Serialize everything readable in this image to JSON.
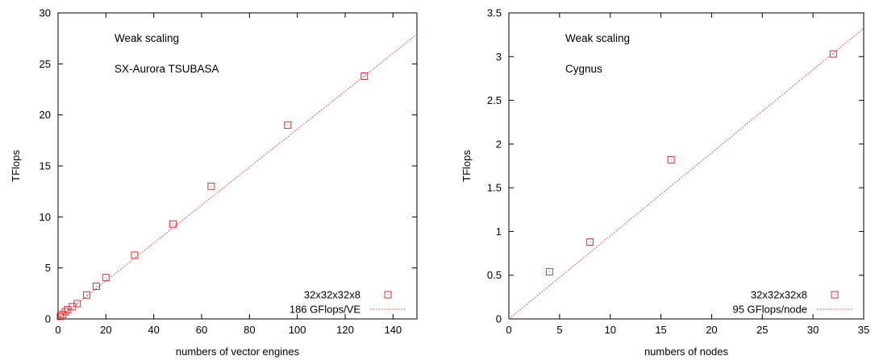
{
  "chart_data": [
    {
      "type": "scatter",
      "title": "",
      "xlabel": "numbers of vector engines",
      "ylabel": "TFlops",
      "xlim": [
        0,
        150
      ],
      "ylim": [
        0,
        30
      ],
      "xticks": [
        0,
        20,
        40,
        60,
        80,
        100,
        120,
        140
      ],
      "yticks": [
        0,
        5,
        10,
        15,
        20,
        25,
        30
      ],
      "grid": false,
      "legend_position": "bottom-right",
      "annotations": [
        "Weak scaling",
        "SX-Aurora TSUBASA"
      ],
      "series": [
        {
          "name": "32x32x32x8",
          "kind": "points",
          "marker": "square",
          "color": "#e0302b",
          "x": [
            1,
            2,
            3,
            4,
            6,
            8,
            12,
            16,
            20,
            32,
            48,
            64,
            96,
            128
          ],
          "y": [
            0.25,
            0.45,
            0.7,
            0.9,
            1.2,
            1.5,
            2.35,
            3.2,
            4.05,
            6.25,
            9.3,
            13.0,
            19.0,
            23.8
          ]
        },
        {
          "name": "186 GFlops/VE",
          "kind": "line",
          "style": "dotted",
          "color": "#e0302b",
          "slope": 0.186,
          "x": [
            0,
            150
          ],
          "y": [
            0,
            27.9
          ]
        }
      ]
    },
    {
      "type": "scatter",
      "title": "",
      "xlabel": "numbers of nodes",
      "ylabel": "TFlops",
      "xlim": [
        0,
        35
      ],
      "ylim": [
        0,
        3.5
      ],
      "xticks": [
        0,
        5,
        10,
        15,
        20,
        25,
        30,
        35
      ],
      "yticks": [
        0,
        0.5,
        1,
        1.5,
        2,
        2.5,
        3,
        3.5
      ],
      "grid": false,
      "legend_position": "bottom-right",
      "annotations": [
        "Weak scaling",
        "Cygnus"
      ],
      "series": [
        {
          "name": "32x32x32x8",
          "kind": "points",
          "marker": "square",
          "color": "#e0302b",
          "x": [
            4,
            8,
            16,
            32
          ],
          "y": [
            0.54,
            0.88,
            1.82,
            3.03
          ]
        },
        {
          "name": "95 GFlops/node",
          "kind": "line",
          "style": "dotted",
          "color": "#e0302b",
          "slope": 0.095,
          "x": [
            0,
            35
          ],
          "y": [
            0,
            3.325
          ]
        }
      ]
    }
  ]
}
